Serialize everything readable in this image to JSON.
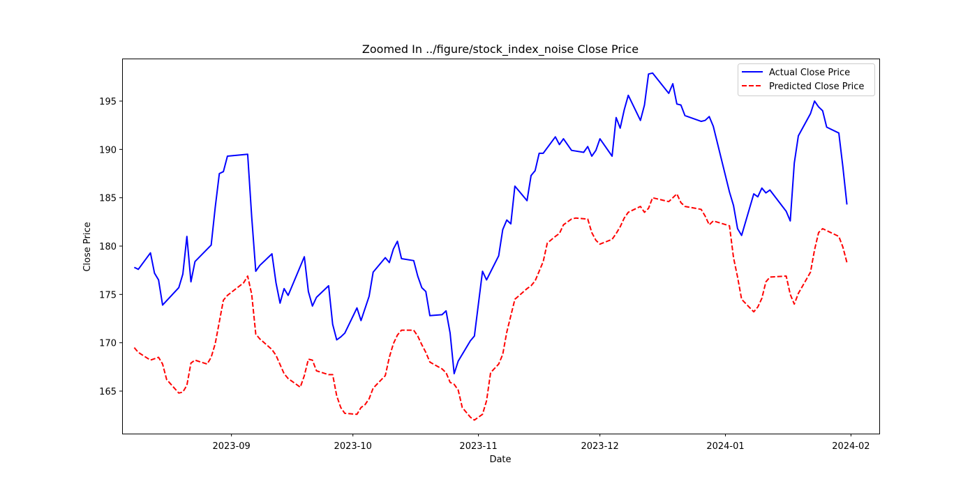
{
  "chart_data": {
    "type": "line",
    "title": "Zoomed In ../figure/stock_index_noise Close Price",
    "xlabel": "Date",
    "ylabel": "Close Price",
    "x_range": [
      "2023-08-05",
      "2024-02-08"
    ],
    "ylim": [
      160.6,
      199.4
    ],
    "x_ticks": [
      "2023-09-01",
      "2023-10-01",
      "2023-11-01",
      "2023-12-01",
      "2024-01-01",
      "2024-02-01"
    ],
    "x_tick_labels": [
      "2023-09",
      "2023-10",
      "2023-11",
      "2023-12",
      "2024-01",
      "2024-02"
    ],
    "y_ticks": [
      165,
      170,
      175,
      180,
      185,
      190,
      195
    ],
    "y_tick_labels": [
      "165",
      "170",
      "175",
      "180",
      "185",
      "190",
      "195"
    ],
    "grid": false,
    "legend_position": "top-right",
    "series": [
      {
        "name": "Actual Close Price",
        "color": "#0000ff",
        "style": "solid",
        "points": [
          [
            "2023-08-08",
            177.8
          ],
          [
            "2023-08-09",
            177.6
          ],
          [
            "2023-08-12",
            179.3
          ],
          [
            "2023-08-13",
            177.2
          ],
          [
            "2023-08-14",
            176.5
          ],
          [
            "2023-08-15",
            173.9
          ],
          [
            "2023-08-19",
            175.7
          ],
          [
            "2023-08-20",
            177.1
          ],
          [
            "2023-08-21",
            181.0
          ],
          [
            "2023-08-22",
            176.3
          ],
          [
            "2023-08-23",
            178.4
          ],
          [
            "2023-08-27",
            180.1
          ],
          [
            "2023-08-28",
            184.0
          ],
          [
            "2023-08-29",
            187.5
          ],
          [
            "2023-08-30",
            187.7
          ],
          [
            "2023-08-31",
            189.3
          ],
          [
            "2023-09-05",
            189.5
          ],
          [
            "2023-09-06",
            183.0
          ],
          [
            "2023-09-07",
            177.4
          ],
          [
            "2023-09-08",
            178.0
          ],
          [
            "2023-09-11",
            179.2
          ],
          [
            "2023-09-12",
            176.2
          ],
          [
            "2023-09-13",
            174.1
          ],
          [
            "2023-09-14",
            175.6
          ],
          [
            "2023-09-15",
            174.9
          ],
          [
            "2023-09-19",
            178.9
          ],
          [
            "2023-09-20",
            175.3
          ],
          [
            "2023-09-21",
            173.8
          ],
          [
            "2023-09-22",
            174.7
          ],
          [
            "2023-09-25",
            175.9
          ],
          [
            "2023-09-26",
            171.9
          ],
          [
            "2023-09-27",
            170.3
          ],
          [
            "2023-09-28",
            170.6
          ],
          [
            "2023-09-29",
            171.0
          ],
          [
            "2023-10-02",
            173.6
          ],
          [
            "2023-10-03",
            172.3
          ],
          [
            "2023-10-05",
            174.8
          ],
          [
            "2023-10-06",
            177.3
          ],
          [
            "2023-10-09",
            178.8
          ],
          [
            "2023-10-10",
            178.3
          ],
          [
            "2023-10-11",
            179.7
          ],
          [
            "2023-10-12",
            180.5
          ],
          [
            "2023-10-13",
            178.7
          ],
          [
            "2023-10-16",
            178.5
          ],
          [
            "2023-10-17",
            176.9
          ],
          [
            "2023-10-18",
            175.7
          ],
          [
            "2023-10-19",
            175.3
          ],
          [
            "2023-10-20",
            172.8
          ],
          [
            "2023-10-23",
            172.9
          ],
          [
            "2023-10-24",
            173.3
          ],
          [
            "2023-10-25",
            171.0
          ],
          [
            "2023-10-26",
            166.8
          ],
          [
            "2023-10-27",
            168.1
          ],
          [
            "2023-10-30",
            170.2
          ],
          [
            "2023-10-31",
            170.7
          ],
          [
            "2023-11-02",
            177.4
          ],
          [
            "2023-11-03",
            176.5
          ],
          [
            "2023-11-06",
            179.0
          ],
          [
            "2023-11-07",
            181.7
          ],
          [
            "2023-11-08",
            182.7
          ],
          [
            "2023-11-09",
            182.3
          ],
          [
            "2023-11-10",
            186.2
          ],
          [
            "2023-11-13",
            184.7
          ],
          [
            "2023-11-14",
            187.3
          ],
          [
            "2023-11-15",
            187.8
          ],
          [
            "2023-11-16",
            189.6
          ],
          [
            "2023-11-17",
            189.6
          ],
          [
            "2023-11-20",
            191.3
          ],
          [
            "2023-11-21",
            190.5
          ],
          [
            "2023-11-22",
            191.1
          ],
          [
            "2023-11-24",
            189.9
          ],
          [
            "2023-11-27",
            189.7
          ],
          [
            "2023-11-28",
            190.3
          ],
          [
            "2023-11-29",
            189.3
          ],
          [
            "2023-11-30",
            189.9
          ],
          [
            "2023-12-01",
            191.1
          ],
          [
            "2023-12-04",
            189.3
          ],
          [
            "2023-12-05",
            193.3
          ],
          [
            "2023-12-06",
            192.2
          ],
          [
            "2023-12-07",
            194.1
          ],
          [
            "2023-12-08",
            195.6
          ],
          [
            "2023-12-11",
            193.0
          ],
          [
            "2023-12-12",
            194.6
          ],
          [
            "2023-12-13",
            197.8
          ],
          [
            "2023-12-14",
            197.9
          ],
          [
            "2023-12-18",
            195.8
          ],
          [
            "2023-12-19",
            196.8
          ],
          [
            "2023-12-20",
            194.7
          ],
          [
            "2023-12-21",
            194.6
          ],
          [
            "2023-12-22",
            193.5
          ],
          [
            "2023-12-26",
            192.9
          ],
          [
            "2023-12-27",
            193.0
          ],
          [
            "2023-12-28",
            193.4
          ],
          [
            "2023-12-29",
            192.4
          ],
          [
            "2024-01-02",
            185.6
          ],
          [
            "2024-01-03",
            184.2
          ],
          [
            "2024-01-04",
            181.8
          ],
          [
            "2024-01-05",
            181.1
          ],
          [
            "2024-01-08",
            185.4
          ],
          [
            "2024-01-09",
            185.1
          ],
          [
            "2024-01-10",
            186.0
          ],
          [
            "2024-01-11",
            185.5
          ],
          [
            "2024-01-12",
            185.8
          ],
          [
            "2024-01-16",
            183.6
          ],
          [
            "2024-01-17",
            182.6
          ],
          [
            "2024-01-18",
            188.6
          ],
          [
            "2024-01-19",
            191.4
          ],
          [
            "2024-01-22",
            193.7
          ],
          [
            "2024-01-23",
            195.0
          ],
          [
            "2024-01-24",
            194.4
          ],
          [
            "2024-01-25",
            194.0
          ],
          [
            "2024-01-26",
            192.3
          ],
          [
            "2024-01-29",
            191.7
          ],
          [
            "2024-01-30",
            188.2
          ],
          [
            "2024-01-31",
            184.3
          ]
        ]
      },
      {
        "name": "Predicted Close Price",
        "color": "#ff0000",
        "style": "dashed",
        "points": [
          [
            "2023-08-08",
            169.5
          ],
          [
            "2023-08-09",
            169.0
          ],
          [
            "2023-08-12",
            168.2
          ],
          [
            "2023-08-14",
            168.5
          ],
          [
            "2023-08-15",
            167.8
          ],
          [
            "2023-08-16",
            166.2
          ],
          [
            "2023-08-19",
            164.8
          ],
          [
            "2023-08-20",
            164.9
          ],
          [
            "2023-08-21",
            165.6
          ],
          [
            "2023-08-22",
            167.9
          ],
          [
            "2023-08-23",
            168.2
          ],
          [
            "2023-08-26",
            167.8
          ],
          [
            "2023-08-27",
            168.5
          ],
          [
            "2023-08-28",
            169.9
          ],
          [
            "2023-08-30",
            174.4
          ],
          [
            "2023-08-31",
            174.9
          ],
          [
            "2023-09-04",
            176.2
          ],
          [
            "2023-09-05",
            176.9
          ],
          [
            "2023-09-06",
            175.0
          ],
          [
            "2023-09-07",
            170.9
          ],
          [
            "2023-09-08",
            170.4
          ],
          [
            "2023-09-11",
            169.3
          ],
          [
            "2023-09-12",
            168.7
          ],
          [
            "2023-09-14",
            166.8
          ],
          [
            "2023-09-15",
            166.3
          ],
          [
            "2023-09-18",
            165.4
          ],
          [
            "2023-09-19",
            166.6
          ],
          [
            "2023-09-20",
            168.3
          ],
          [
            "2023-09-21",
            168.2
          ],
          [
            "2023-09-22",
            167.1
          ],
          [
            "2023-09-25",
            166.7
          ],
          [
            "2023-09-26",
            166.7
          ],
          [
            "2023-09-27",
            164.5
          ],
          [
            "2023-09-28",
            163.3
          ],
          [
            "2023-09-29",
            162.7
          ],
          [
            "2023-10-02",
            162.6
          ],
          [
            "2023-10-03",
            163.3
          ],
          [
            "2023-10-04",
            163.6
          ],
          [
            "2023-10-05",
            164.2
          ],
          [
            "2023-10-06",
            165.3
          ],
          [
            "2023-10-09",
            166.6
          ],
          [
            "2023-10-10",
            168.5
          ],
          [
            "2023-10-11",
            169.9
          ],
          [
            "2023-10-12",
            170.8
          ],
          [
            "2023-10-13",
            171.3
          ],
          [
            "2023-10-16",
            171.3
          ],
          [
            "2023-10-17",
            170.7
          ],
          [
            "2023-10-18",
            169.8
          ],
          [
            "2023-10-19",
            169.0
          ],
          [
            "2023-10-20",
            168.0
          ],
          [
            "2023-10-23",
            167.3
          ],
          [
            "2023-10-24",
            166.9
          ],
          [
            "2023-10-25",
            165.9
          ],
          [
            "2023-10-26",
            165.7
          ],
          [
            "2023-10-27",
            165.1
          ],
          [
            "2023-10-28",
            163.3
          ],
          [
            "2023-10-30",
            162.3
          ],
          [
            "2023-10-31",
            162.0
          ],
          [
            "2023-11-02",
            162.6
          ],
          [
            "2023-11-03",
            164.0
          ],
          [
            "2023-11-04",
            166.9
          ],
          [
            "2023-11-06",
            167.8
          ],
          [
            "2023-11-07",
            168.8
          ],
          [
            "2023-11-08",
            171.1
          ],
          [
            "2023-11-10",
            174.5
          ],
          [
            "2023-11-13",
            175.6
          ],
          [
            "2023-11-14",
            175.9
          ],
          [
            "2023-11-15",
            176.4
          ],
          [
            "2023-11-16",
            177.4
          ],
          [
            "2023-11-17",
            178.4
          ],
          [
            "2023-11-18",
            180.3
          ],
          [
            "2023-11-20",
            181.0
          ],
          [
            "2023-11-21",
            181.3
          ],
          [
            "2023-11-22",
            182.2
          ],
          [
            "2023-11-24",
            182.8
          ],
          [
            "2023-11-25",
            182.9
          ],
          [
            "2023-11-28",
            182.8
          ],
          [
            "2023-11-29",
            181.4
          ],
          [
            "2023-11-30",
            180.6
          ],
          [
            "2023-12-01",
            180.2
          ],
          [
            "2023-12-04",
            180.7
          ],
          [
            "2023-12-05",
            181.3
          ],
          [
            "2023-12-06",
            182.0
          ],
          [
            "2023-12-07",
            182.9
          ],
          [
            "2023-12-08",
            183.5
          ],
          [
            "2023-12-11",
            184.1
          ],
          [
            "2023-12-12",
            183.5
          ],
          [
            "2023-12-13",
            183.9
          ],
          [
            "2023-12-14",
            185.0
          ],
          [
            "2023-12-18",
            184.6
          ],
          [
            "2023-12-20",
            185.4
          ],
          [
            "2023-12-21",
            184.5
          ],
          [
            "2023-12-22",
            184.1
          ],
          [
            "2023-12-26",
            183.8
          ],
          [
            "2023-12-27",
            183.1
          ],
          [
            "2023-12-28",
            182.2
          ],
          [
            "2023-12-29",
            182.6
          ],
          [
            "2024-01-02",
            182.1
          ],
          [
            "2024-01-03",
            178.8
          ],
          [
            "2024-01-04",
            176.8
          ],
          [
            "2024-01-05",
            174.5
          ],
          [
            "2024-01-08",
            173.2
          ],
          [
            "2024-01-09",
            173.7
          ],
          [
            "2024-01-10",
            174.6
          ],
          [
            "2024-01-11",
            176.3
          ],
          [
            "2024-01-12",
            176.8
          ],
          [
            "2024-01-16",
            176.9
          ],
          [
            "2024-01-17",
            175.0
          ],
          [
            "2024-01-18",
            174.0
          ],
          [
            "2024-01-19",
            175.1
          ],
          [
            "2024-01-22",
            177.3
          ],
          [
            "2024-01-23",
            179.6
          ],
          [
            "2024-01-24",
            181.4
          ],
          [
            "2024-01-25",
            181.8
          ],
          [
            "2024-01-26",
            181.6
          ],
          [
            "2024-01-29",
            181.0
          ],
          [
            "2024-01-30",
            179.9
          ],
          [
            "2024-01-31",
            178.3
          ]
        ]
      }
    ]
  }
}
